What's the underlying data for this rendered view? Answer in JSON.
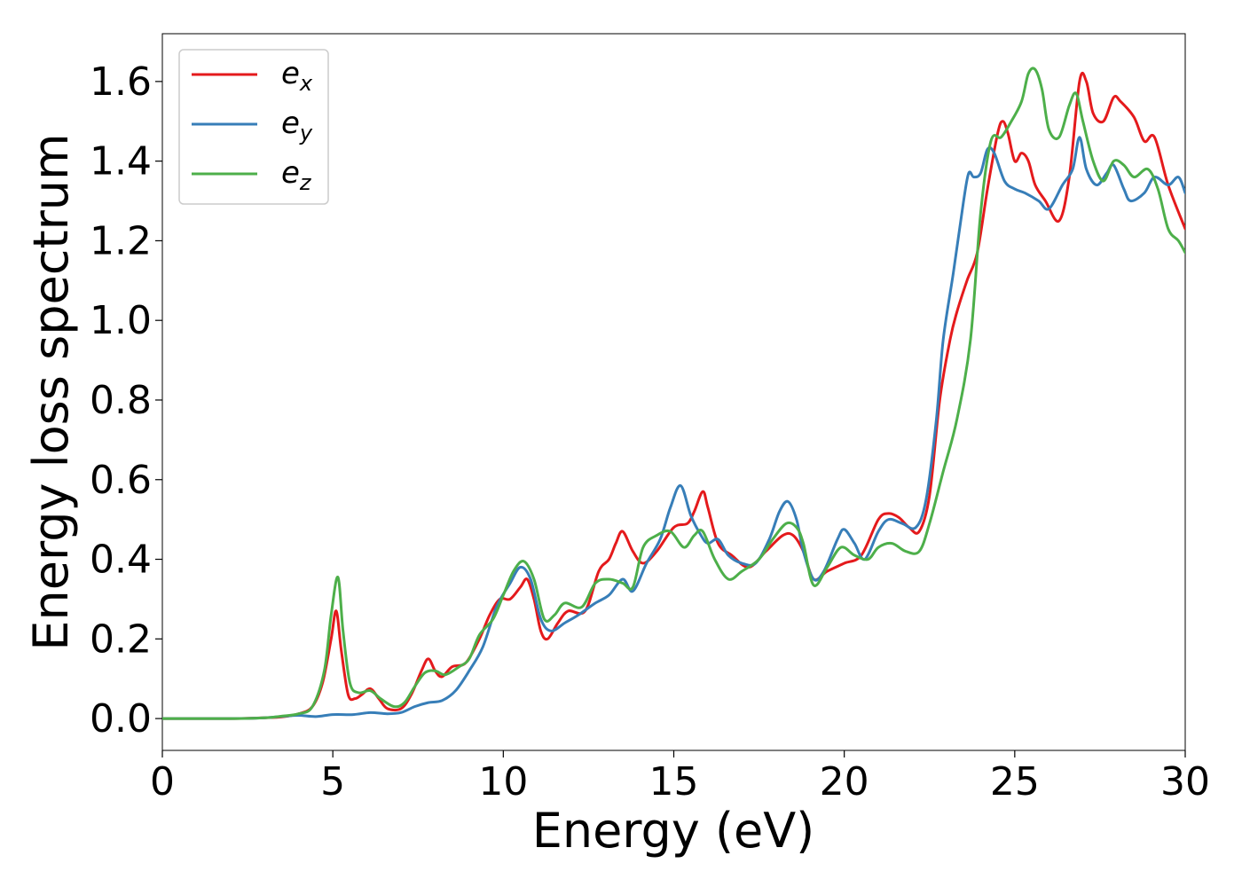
{
  "chart_data": {
    "type": "line",
    "title": "",
    "xlabel": "Energy (eV)",
    "ylabel": "Energy loss spectrum",
    "xlim": [
      0,
      30
    ],
    "ylim": [
      -0.08,
      1.72
    ],
    "xticks": [
      0,
      5,
      10,
      15,
      20,
      25,
      30
    ],
    "xtick_labels": [
      "0",
      "5",
      "10",
      "15",
      "20",
      "25",
      "30"
    ],
    "yticks": [
      0.0,
      0.2,
      0.4,
      0.6,
      0.8,
      1.0,
      1.2,
      1.4,
      1.6
    ],
    "ytick_labels": [
      "0.0",
      "0.2",
      "0.4",
      "0.6",
      "0.8",
      "1.0",
      "1.2",
      "1.4",
      "1.6"
    ],
    "grid": false,
    "legend_position": "top-left",
    "series": [
      {
        "name": "e_x",
        "legend_base": "e",
        "legend_sub": "x",
        "color": "#e41a1c",
        "points": [
          [
            0,
            0.0
          ],
          [
            1,
            0.0
          ],
          [
            2,
            0.0
          ],
          [
            3,
            0.002
          ],
          [
            3.5,
            0.004
          ],
          [
            4,
            0.012
          ],
          [
            4.4,
            0.03
          ],
          [
            4.7,
            0.09
          ],
          [
            4.95,
            0.2
          ],
          [
            5.1,
            0.27
          ],
          [
            5.25,
            0.17
          ],
          [
            5.45,
            0.06
          ],
          [
            5.65,
            0.05
          ],
          [
            5.85,
            0.06
          ],
          [
            6.1,
            0.075
          ],
          [
            6.35,
            0.05
          ],
          [
            6.6,
            0.025
          ],
          [
            7.0,
            0.025
          ],
          [
            7.3,
            0.06
          ],
          [
            7.6,
            0.12
          ],
          [
            7.8,
            0.15
          ],
          [
            8.0,
            0.12
          ],
          [
            8.2,
            0.105
          ],
          [
            8.5,
            0.13
          ],
          [
            8.9,
            0.14
          ],
          [
            9.3,
            0.2
          ],
          [
            9.6,
            0.26
          ],
          [
            9.9,
            0.3
          ],
          [
            10.2,
            0.3
          ],
          [
            10.5,
            0.33
          ],
          [
            10.7,
            0.35
          ],
          [
            10.9,
            0.3
          ],
          [
            11.1,
            0.22
          ],
          [
            11.3,
            0.2
          ],
          [
            11.6,
            0.24
          ],
          [
            11.9,
            0.27
          ],
          [
            12.4,
            0.27
          ],
          [
            12.8,
            0.37
          ],
          [
            13.1,
            0.4
          ],
          [
            13.3,
            0.44
          ],
          [
            13.5,
            0.47
          ],
          [
            13.8,
            0.42
          ],
          [
            14.1,
            0.39
          ],
          [
            14.5,
            0.42
          ],
          [
            15.0,
            0.48
          ],
          [
            15.4,
            0.49
          ],
          [
            15.6,
            0.52
          ],
          [
            15.85,
            0.57
          ],
          [
            16.0,
            0.53
          ],
          [
            16.3,
            0.44
          ],
          [
            16.7,
            0.41
          ],
          [
            17.2,
            0.38
          ],
          [
            17.7,
            0.42
          ],
          [
            18.2,
            0.46
          ],
          [
            18.5,
            0.46
          ],
          [
            18.8,
            0.42
          ],
          [
            19.1,
            0.35
          ],
          [
            19.5,
            0.37
          ],
          [
            20.0,
            0.39
          ],
          [
            20.5,
            0.41
          ],
          [
            21.0,
            0.5
          ],
          [
            21.3,
            0.515
          ],
          [
            21.6,
            0.505
          ],
          [
            21.9,
            0.48
          ],
          [
            22.2,
            0.47
          ],
          [
            22.5,
            0.56
          ],
          [
            22.8,
            0.8
          ],
          [
            23.1,
            0.95
          ],
          [
            23.3,
            1.02
          ],
          [
            23.6,
            1.1
          ],
          [
            23.9,
            1.17
          ],
          [
            24.2,
            1.33
          ],
          [
            24.5,
            1.47
          ],
          [
            24.65,
            1.5
          ],
          [
            24.8,
            1.47
          ],
          [
            25.0,
            1.4
          ],
          [
            25.2,
            1.42
          ],
          [
            25.4,
            1.4
          ],
          [
            25.6,
            1.34
          ],
          [
            25.9,
            1.3
          ],
          [
            26.3,
            1.25
          ],
          [
            26.6,
            1.36
          ],
          [
            26.9,
            1.6
          ],
          [
            27.1,
            1.6
          ],
          [
            27.3,
            1.52
          ],
          [
            27.6,
            1.5
          ],
          [
            27.9,
            1.56
          ],
          [
            28.1,
            1.55
          ],
          [
            28.5,
            1.51
          ],
          [
            28.8,
            1.45
          ],
          [
            29.1,
            1.46
          ],
          [
            29.5,
            1.34
          ],
          [
            30.0,
            1.23
          ]
        ]
      },
      {
        "name": "e_y",
        "legend_base": "e",
        "legend_sub": "y",
        "color": "#377eb8",
        "points": [
          [
            0,
            0.0
          ],
          [
            2,
            0.0
          ],
          [
            3,
            0.002
          ],
          [
            3.6,
            0.006
          ],
          [
            4.0,
            0.008
          ],
          [
            4.5,
            0.005
          ],
          [
            5.0,
            0.01
          ],
          [
            5.6,
            0.01
          ],
          [
            6.1,
            0.015
          ],
          [
            6.6,
            0.012
          ],
          [
            7.0,
            0.015
          ],
          [
            7.4,
            0.03
          ],
          [
            7.8,
            0.04
          ],
          [
            8.2,
            0.045
          ],
          [
            8.6,
            0.07
          ],
          [
            9.0,
            0.12
          ],
          [
            9.4,
            0.18
          ],
          [
            9.8,
            0.28
          ],
          [
            10.2,
            0.34
          ],
          [
            10.5,
            0.38
          ],
          [
            10.8,
            0.35
          ],
          [
            11.1,
            0.25
          ],
          [
            11.4,
            0.22
          ],
          [
            11.8,
            0.24
          ],
          [
            12.2,
            0.26
          ],
          [
            12.7,
            0.29
          ],
          [
            13.1,
            0.31
          ],
          [
            13.5,
            0.35
          ],
          [
            13.8,
            0.32
          ],
          [
            14.2,
            0.39
          ],
          [
            14.6,
            0.45
          ],
          [
            14.9,
            0.53
          ],
          [
            15.2,
            0.585
          ],
          [
            15.5,
            0.51
          ],
          [
            15.8,
            0.46
          ],
          [
            16.0,
            0.44
          ],
          [
            16.3,
            0.45
          ],
          [
            16.6,
            0.41
          ],
          [
            17.0,
            0.39
          ],
          [
            17.4,
            0.39
          ],
          [
            17.8,
            0.45
          ],
          [
            18.1,
            0.52
          ],
          [
            18.35,
            0.545
          ],
          [
            18.6,
            0.5
          ],
          [
            18.8,
            0.42
          ],
          [
            19.1,
            0.35
          ],
          [
            19.4,
            0.37
          ],
          [
            19.8,
            0.45
          ],
          [
            20.0,
            0.475
          ],
          [
            20.3,
            0.44
          ],
          [
            20.6,
            0.4
          ],
          [
            21.0,
            0.47
          ],
          [
            21.3,
            0.5
          ],
          [
            21.7,
            0.49
          ],
          [
            22.1,
            0.48
          ],
          [
            22.4,
            0.55
          ],
          [
            22.7,
            0.75
          ],
          [
            22.9,
            0.95
          ],
          [
            23.2,
            1.12
          ],
          [
            23.5,
            1.3
          ],
          [
            23.65,
            1.37
          ],
          [
            23.8,
            1.36
          ],
          [
            24.0,
            1.37
          ],
          [
            24.2,
            1.43
          ],
          [
            24.4,
            1.42
          ],
          [
            24.7,
            1.35
          ],
          [
            25.0,
            1.33
          ],
          [
            25.3,
            1.32
          ],
          [
            25.7,
            1.3
          ],
          [
            26.0,
            1.28
          ],
          [
            26.4,
            1.34
          ],
          [
            26.7,
            1.38
          ],
          [
            26.9,
            1.46
          ],
          [
            27.1,
            1.38
          ],
          [
            27.4,
            1.34
          ],
          [
            27.7,
            1.37
          ],
          [
            27.9,
            1.39
          ],
          [
            28.2,
            1.33
          ],
          [
            28.4,
            1.3
          ],
          [
            28.8,
            1.32
          ],
          [
            29.1,
            1.36
          ],
          [
            29.5,
            1.34
          ],
          [
            29.8,
            1.36
          ],
          [
            30.0,
            1.32
          ]
        ]
      },
      {
        "name": "e_z",
        "legend_base": "e",
        "legend_sub": "z",
        "color": "#4daf4a",
        "points": [
          [
            0,
            0.0
          ],
          [
            2,
            0.0
          ],
          [
            3,
            0.002
          ],
          [
            3.5,
            0.006
          ],
          [
            4.0,
            0.012
          ],
          [
            4.4,
            0.03
          ],
          [
            4.75,
            0.12
          ],
          [
            4.95,
            0.26
          ],
          [
            5.15,
            0.355
          ],
          [
            5.3,
            0.22
          ],
          [
            5.5,
            0.09
          ],
          [
            5.75,
            0.065
          ],
          [
            6.1,
            0.07
          ],
          [
            6.4,
            0.05
          ],
          [
            6.8,
            0.03
          ],
          [
            7.1,
            0.04
          ],
          [
            7.4,
            0.08
          ],
          [
            7.7,
            0.115
          ],
          [
            8.0,
            0.12
          ],
          [
            8.3,
            0.11
          ],
          [
            8.7,
            0.13
          ],
          [
            9.0,
            0.15
          ],
          [
            9.3,
            0.21
          ],
          [
            9.7,
            0.25
          ],
          [
            10.0,
            0.31
          ],
          [
            10.3,
            0.37
          ],
          [
            10.6,
            0.395
          ],
          [
            10.9,
            0.35
          ],
          [
            11.2,
            0.25
          ],
          [
            11.5,
            0.26
          ],
          [
            11.8,
            0.29
          ],
          [
            12.3,
            0.28
          ],
          [
            12.7,
            0.34
          ],
          [
            13.1,
            0.35
          ],
          [
            13.5,
            0.34
          ],
          [
            13.8,
            0.33
          ],
          [
            14.1,
            0.43
          ],
          [
            14.5,
            0.46
          ],
          [
            14.9,
            0.47
          ],
          [
            15.3,
            0.43
          ],
          [
            15.6,
            0.46
          ],
          [
            15.85,
            0.47
          ],
          [
            16.2,
            0.4
          ],
          [
            16.6,
            0.35
          ],
          [
            17.0,
            0.37
          ],
          [
            17.5,
            0.4
          ],
          [
            17.9,
            0.45
          ],
          [
            18.3,
            0.49
          ],
          [
            18.6,
            0.48
          ],
          [
            18.8,
            0.44
          ],
          [
            19.1,
            0.335
          ],
          [
            19.5,
            0.38
          ],
          [
            19.9,
            0.43
          ],
          [
            20.3,
            0.41
          ],
          [
            20.7,
            0.4
          ],
          [
            21.0,
            0.43
          ],
          [
            21.4,
            0.44
          ],
          [
            21.8,
            0.42
          ],
          [
            22.2,
            0.42
          ],
          [
            22.5,
            0.49
          ],
          [
            22.9,
            0.62
          ],
          [
            23.3,
            0.75
          ],
          [
            23.7,
            0.95
          ],
          [
            24.0,
            1.27
          ],
          [
            24.3,
            1.45
          ],
          [
            24.6,
            1.46
          ],
          [
            24.9,
            1.5
          ],
          [
            25.2,
            1.55
          ],
          [
            25.4,
            1.62
          ],
          [
            25.6,
            1.63
          ],
          [
            25.8,
            1.58
          ],
          [
            26.0,
            1.48
          ],
          [
            26.3,
            1.46
          ],
          [
            26.6,
            1.54
          ],
          [
            26.8,
            1.57
          ],
          [
            27.0,
            1.5
          ],
          [
            27.3,
            1.4
          ],
          [
            27.6,
            1.35
          ],
          [
            27.9,
            1.4
          ],
          [
            28.2,
            1.39
          ],
          [
            28.5,
            1.36
          ],
          [
            28.9,
            1.38
          ],
          [
            29.2,
            1.33
          ],
          [
            29.5,
            1.23
          ],
          [
            29.8,
            1.2
          ],
          [
            30.0,
            1.17
          ]
        ]
      }
    ]
  }
}
